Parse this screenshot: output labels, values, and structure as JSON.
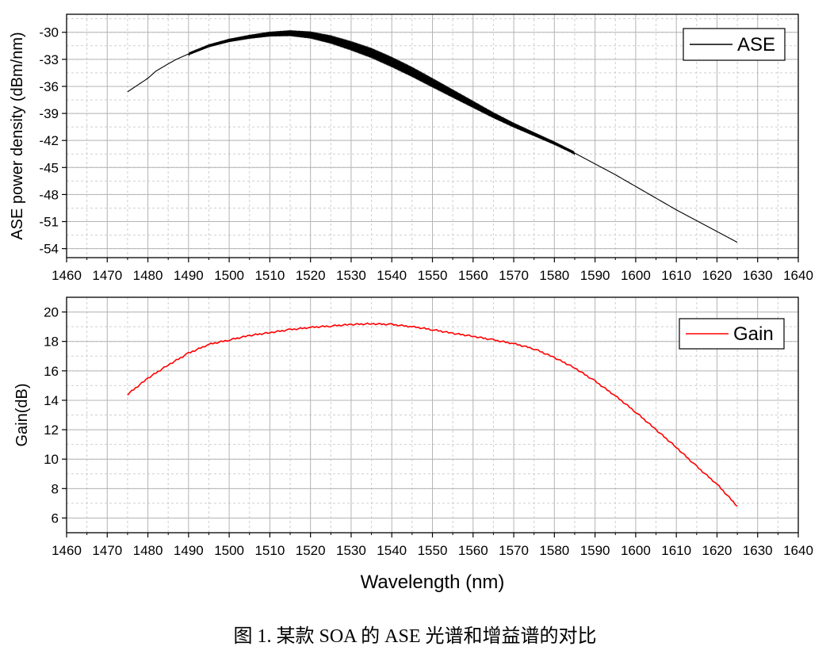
{
  "caption": "图 1. 某款 SOA 的 ASE 光谱和增益谱的对比",
  "chart_data": [
    {
      "type": "line",
      "ylabel": "ASE power density (dBm/nm)",
      "xlabel": "",
      "xlim": [
        1460,
        1640
      ],
      "ylim": [
        -55,
        -28
      ],
      "xticks": [
        "1460",
        "1470",
        "1480",
        "1490",
        "1500",
        "1510",
        "1520",
        "1530",
        "1540",
        "1550",
        "1560",
        "1570",
        "1580",
        "1590",
        "1600",
        "1610",
        "1620",
        "1630",
        "1640"
      ],
      "yticks": [
        "-30",
        "-33",
        "-36",
        "-39",
        "-42",
        "-45",
        "-48",
        "-51",
        "-54"
      ],
      "grid": true,
      "legend": "top-right",
      "series": [
        {
          "name": "ASE",
          "color": "#000000",
          "x": [
            1475,
            1477,
            1480,
            1482,
            1485,
            1487,
            1490,
            1495,
            1500,
            1505,
            1510,
            1515,
            1520,
            1525,
            1530,
            1535,
            1540,
            1545,
            1550,
            1555,
            1560,
            1565,
            1570,
            1575,
            1580,
            1585,
            1590,
            1595,
            1600,
            1605,
            1610,
            1615,
            1620,
            1625
          ],
          "values": [
            -36.6,
            -36.0,
            -35.1,
            -34.3,
            -33.5,
            -33.0,
            -32.4,
            -31.5,
            -30.9,
            -30.5,
            -30.2,
            -30.1,
            -30.3,
            -30.8,
            -31.5,
            -32.3,
            -33.3,
            -34.4,
            -35.6,
            -36.8,
            -38.0,
            -39.2,
            -40.3,
            -41.3,
            -42.3,
            -43.4,
            -44.6,
            -45.8,
            -47.1,
            -48.4,
            -49.7,
            -50.9,
            -52.1,
            -53.3
          ]
        }
      ]
    },
    {
      "type": "line",
      "ylabel": "Gain(dB)",
      "xlabel": "Wavelength (nm)",
      "xlim": [
        1460,
        1640
      ],
      "ylim": [
        5,
        21
      ],
      "xticks": [
        "1460",
        "1470",
        "1480",
        "1490",
        "1500",
        "1510",
        "1520",
        "1530",
        "1540",
        "1550",
        "1560",
        "1570",
        "1580",
        "1590",
        "1600",
        "1610",
        "1620",
        "1630",
        "1640"
      ],
      "yticks": [
        "20",
        "18",
        "16",
        "14",
        "12",
        "10",
        "8",
        "6"
      ],
      "grid": true,
      "legend": "top-right",
      "series": [
        {
          "name": "Gain",
          "color": "#ff0000",
          "x": [
            1475,
            1480,
            1485,
            1490,
            1495,
            1500,
            1505,
            1510,
            1515,
            1520,
            1525,
            1530,
            1535,
            1540,
            1545,
            1550,
            1555,
            1560,
            1565,
            1570,
            1575,
            1580,
            1585,
            1590,
            1595,
            1600,
            1605,
            1610,
            1615,
            1620,
            1625
          ],
          "values": [
            14.4,
            15.5,
            16.4,
            17.2,
            17.8,
            18.1,
            18.4,
            18.6,
            18.8,
            18.95,
            19.05,
            19.15,
            19.2,
            19.15,
            19.0,
            18.8,
            18.55,
            18.35,
            18.1,
            17.85,
            17.5,
            16.9,
            16.2,
            15.3,
            14.3,
            13.2,
            12.0,
            10.8,
            9.5,
            8.3,
            6.8
          ]
        }
      ]
    }
  ]
}
